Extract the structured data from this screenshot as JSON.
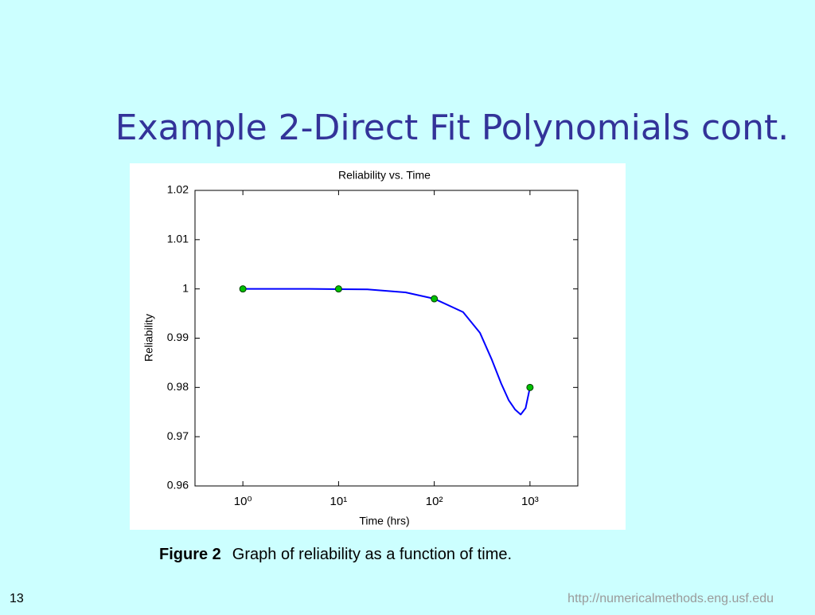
{
  "slide_title": "Example 2-Direct Fit Polynomials cont.",
  "caption": {
    "label": "Figure 2",
    "text": "Graph of reliability as a function of time."
  },
  "page_number": "13",
  "url": "http://numericalmethods.eng.usf.edu",
  "chart_data": {
    "type": "line",
    "title": "Reliability vs. Time",
    "x_label": "Time (hrs)",
    "y_label": "Reliability",
    "xscale": "log",
    "xlim": [
      0.316,
      3162
    ],
    "ylim": [
      0.96,
      1.02
    ],
    "xticks": [
      {
        "value": 1,
        "label": "10⁰"
      },
      {
        "value": 10,
        "label": "10¹"
      },
      {
        "value": 100,
        "label": "10²"
      },
      {
        "value": 1000,
        "label": "10³"
      }
    ],
    "yticks": [
      0.96,
      0.97,
      0.98,
      0.99,
      1,
      1.01,
      1.02
    ],
    "series": [
      {
        "x": [
          1,
          2,
          5,
          10,
          20,
          50,
          100,
          200,
          300,
          400,
          500,
          600,
          700,
          800,
          900,
          1000
        ],
        "values": [
          1,
          1,
          1,
          0.99995,
          0.9999,
          0.9993,
          0.998,
          0.9953,
          0.9911,
          0.9856,
          0.9808,
          0.9774,
          0.9755,
          0.9745,
          0.9758,
          0.98
        ],
        "color": "#0000ff"
      },
      {
        "x": [
          1,
          10,
          100,
          1000
        ],
        "values": [
          1,
          1,
          0.998,
          0.98
        ],
        "color": "#00c000",
        "marker": "circle"
      }
    ]
  }
}
